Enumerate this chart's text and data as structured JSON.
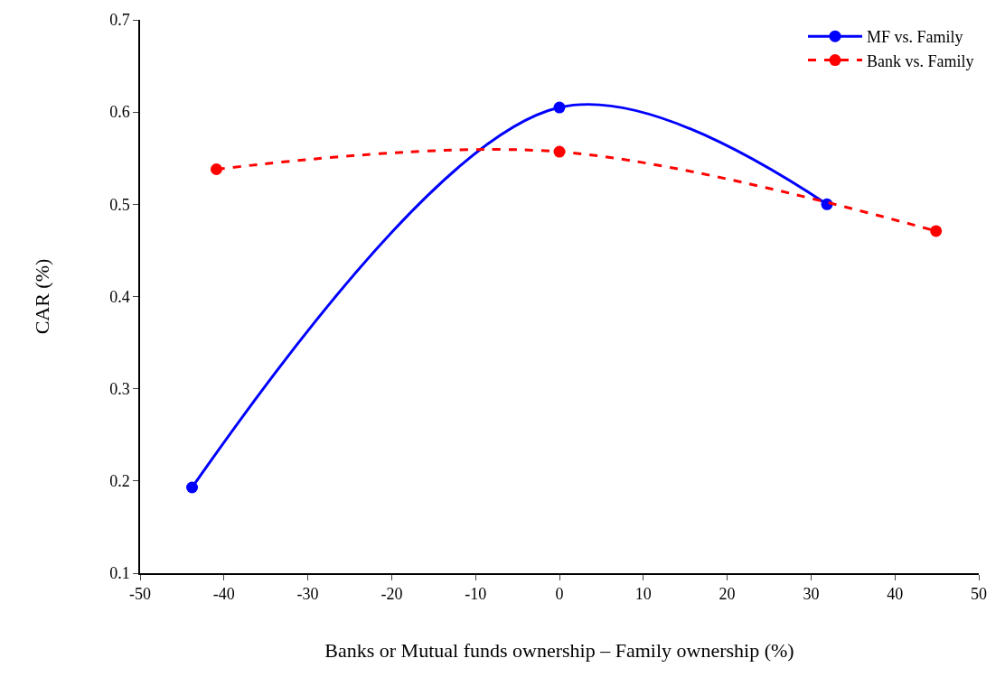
{
  "chart_data": {
    "type": "line",
    "xlabel": "Banks or Mutual funds ownership – Family ownership (%)",
    "ylabel": "CAR (%)",
    "xlim": [
      -50,
      50
    ],
    "xticks": [
      -50,
      -40,
      -30,
      -20,
      -10,
      0,
      10,
      20,
      30,
      40,
      50
    ],
    "ylim": [
      0.1,
      0.7
    ],
    "yticks": [
      0.1,
      0.2,
      0.3,
      0.4,
      0.5,
      0.6,
      0.7
    ],
    "legend": "top right",
    "marker": "circle",
    "series": [
      {
        "name": "MF vs. Family",
        "color": "#0000ff",
        "line_style": "solid",
        "x": [
          -43.8,
          0,
          31.9
        ],
        "values": [
          0.193,
          0.605,
          0.5
        ]
      },
      {
        "name": "Bank vs. Family",
        "color": "#ff0000",
        "line_style": "dashed",
        "x": [
          -40.9,
          0,
          44.9
        ],
        "values": [
          0.538,
          0.557,
          0.471
        ]
      }
    ]
  }
}
